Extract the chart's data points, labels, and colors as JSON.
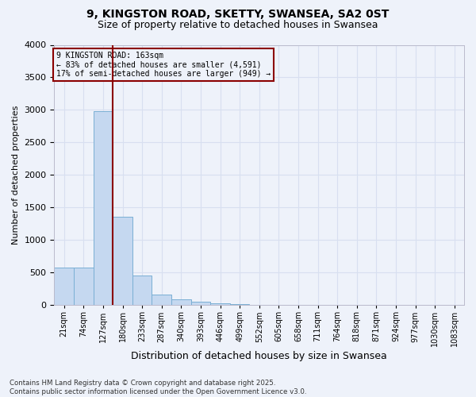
{
  "title_line1": "9, KINGSTON ROAD, SKETTY, SWANSEA, SA2 0ST",
  "title_line2": "Size of property relative to detached houses in Swansea",
  "xlabel": "Distribution of detached houses by size in Swansea",
  "ylabel": "Number of detached properties",
  "bin_labels": [
    "21sqm",
    "74sqm",
    "127sqm",
    "180sqm",
    "233sqm",
    "287sqm",
    "340sqm",
    "393sqm",
    "446sqm",
    "499sqm",
    "552sqm",
    "605sqm",
    "658sqm",
    "711sqm",
    "764sqm",
    "818sqm",
    "871sqm",
    "924sqm",
    "977sqm",
    "1030sqm",
    "1083sqm"
  ],
  "bar_values": [
    580,
    580,
    2980,
    1360,
    450,
    165,
    90,
    55,
    30,
    12,
    6,
    4,
    3,
    2,
    2,
    1,
    1,
    1,
    1,
    1,
    1
  ],
  "bar_color": "#c5d8f0",
  "bar_edgecolor": "#7aafd4",
  "background_color": "#eef2fa",
  "grid_color": "#d8dff0",
  "vline_bin_index": 2.83,
  "vline_color": "#8b0000",
  "annotation_text": "9 KINGSTON ROAD: 163sqm\n← 83% of detached houses are smaller (4,591)\n17% of semi-detached houses are larger (949) →",
  "annotation_box_color": "#8b0000",
  "ylim": [
    0,
    4000
  ],
  "yticks": [
    0,
    500,
    1000,
    1500,
    2000,
    2500,
    3000,
    3500,
    4000
  ],
  "footer_line1": "Contains HM Land Registry data © Crown copyright and database right 2025.",
  "footer_line2": "Contains public sector information licensed under the Open Government Licence v3.0."
}
